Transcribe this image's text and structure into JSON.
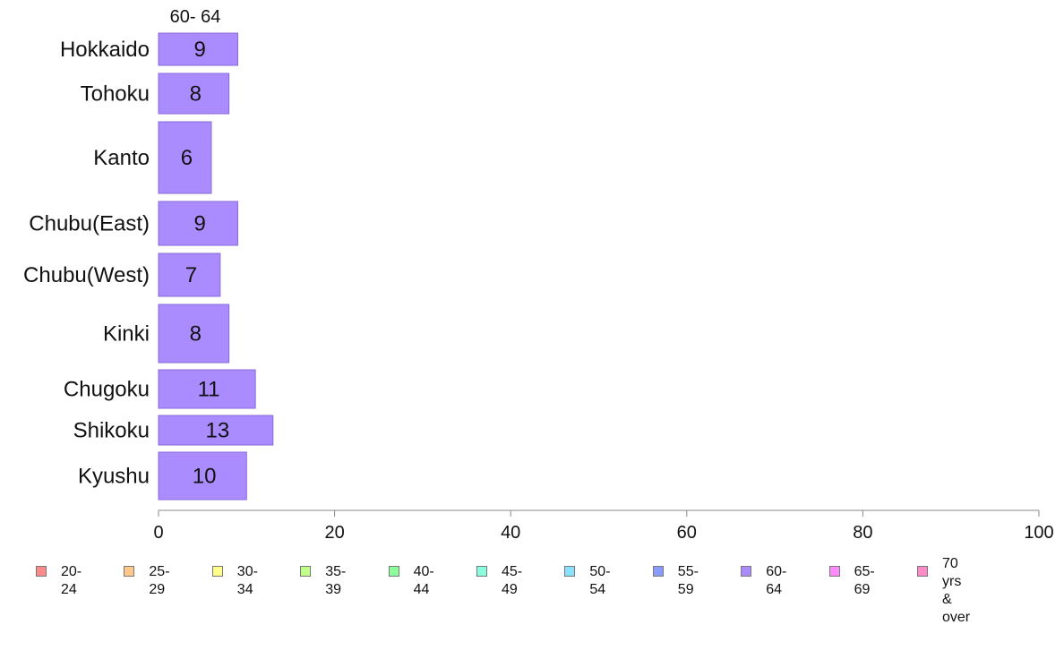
{
  "chart_data": {
    "type": "bar",
    "orientation": "horizontal",
    "series_label": "60- 64",
    "categories": [
      "Hokkaido",
      "Tohoku",
      "Kanto",
      "Chubu(East)",
      "Chubu(West)",
      "Kinki",
      "Chugoku",
      "Shikoku",
      "Kyushu"
    ],
    "values": [
      9,
      8,
      6,
      9,
      7,
      8,
      11,
      13,
      10
    ],
    "value_labels": [
      "9",
      "8",
      "6",
      "9",
      "7",
      "8",
      "11",
      "13",
      "10"
    ],
    "xlim": [
      0,
      100
    ],
    "xticks": [
      0,
      20,
      40,
      60,
      80,
      100
    ],
    "xtick_labels": [
      "0",
      "20",
      "40",
      "60",
      "80",
      "100"
    ],
    "grid": false,
    "bar_color": "#aa8cff",
    "bar_edge_color": "#8a6ad8",
    "legend_position": "bottom",
    "legend": [
      {
        "label": "20- 24",
        "color": "#ff8a8a"
      },
      {
        "label": "25- 29",
        "color": "#ffc88a"
      },
      {
        "label": "30- 34",
        "color": "#ffff8a"
      },
      {
        "label": "35- 39",
        "color": "#bfff8a"
      },
      {
        "label": "40- 44",
        "color": "#8aff9a"
      },
      {
        "label": "45- 49",
        "color": "#8affe0"
      },
      {
        "label": "50- 54",
        "color": "#8ae0ff"
      },
      {
        "label": "55- 59",
        "color": "#8a9aff"
      },
      {
        "label": "60- 64",
        "color": "#aa8cff"
      },
      {
        "label": "65- 69",
        "color": "#ff8aff"
      },
      {
        "label": "70 yrs\n& over",
        "color": "#ff8ac8"
      }
    ]
  }
}
